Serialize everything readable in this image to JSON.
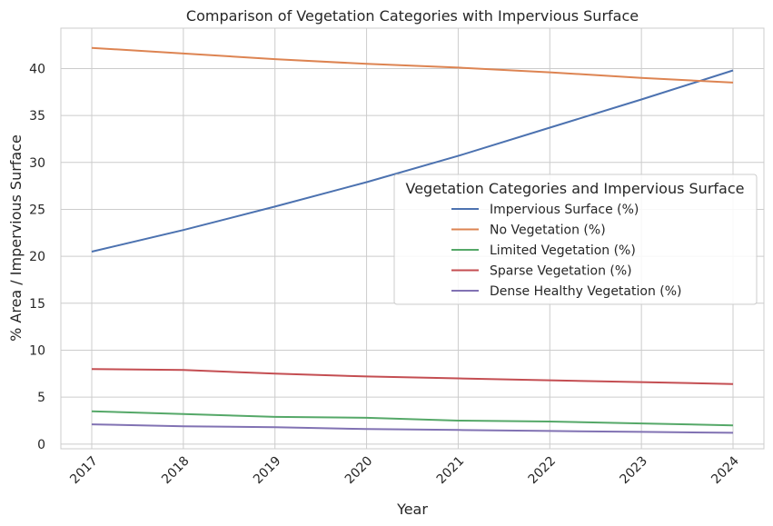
{
  "chart_data": {
    "type": "line",
    "title": "Comparison of Vegetation Categories with Impervious Surface",
    "xlabel": "Year",
    "ylabel": "% Area / Impervious Surface",
    "x": [
      "2017",
      "2018",
      "2019",
      "2020",
      "2021",
      "2022",
      "2023",
      "2024"
    ],
    "yticks": [
      "0",
      "5",
      "10",
      "15",
      "20",
      "25",
      "30",
      "35",
      "40"
    ],
    "ylim": [
      -0.5,
      44.3
    ],
    "grid": true,
    "legend": {
      "title": "Vegetation Categories and Impervious Surface",
      "placement": "center-right"
    },
    "series": [
      {
        "name": "Impervious Surface (%)",
        "color": "#4c72b0",
        "values": [
          20.5,
          22.8,
          25.3,
          27.9,
          30.7,
          33.7,
          36.7,
          39.8
        ]
      },
      {
        "name": "No Vegetation (%)",
        "color": "#dd8452",
        "values": [
          42.2,
          41.6,
          41.0,
          40.5,
          40.1,
          39.6,
          39.0,
          38.5
        ]
      },
      {
        "name": "Limited Vegetation (%)",
        "color": "#55a868",
        "values": [
          3.5,
          3.2,
          2.9,
          2.8,
          2.5,
          2.4,
          2.2,
          2.0
        ]
      },
      {
        "name": "Sparse Vegetation (%)",
        "color": "#c44e52",
        "values": [
          8.0,
          7.9,
          7.5,
          7.2,
          7.0,
          6.8,
          6.6,
          6.4
        ]
      },
      {
        "name": "Dense Healthy Vegetation (%)",
        "color": "#8172b3",
        "values": [
          2.1,
          1.9,
          1.8,
          1.6,
          1.5,
          1.4,
          1.3,
          1.2
        ]
      }
    ]
  }
}
